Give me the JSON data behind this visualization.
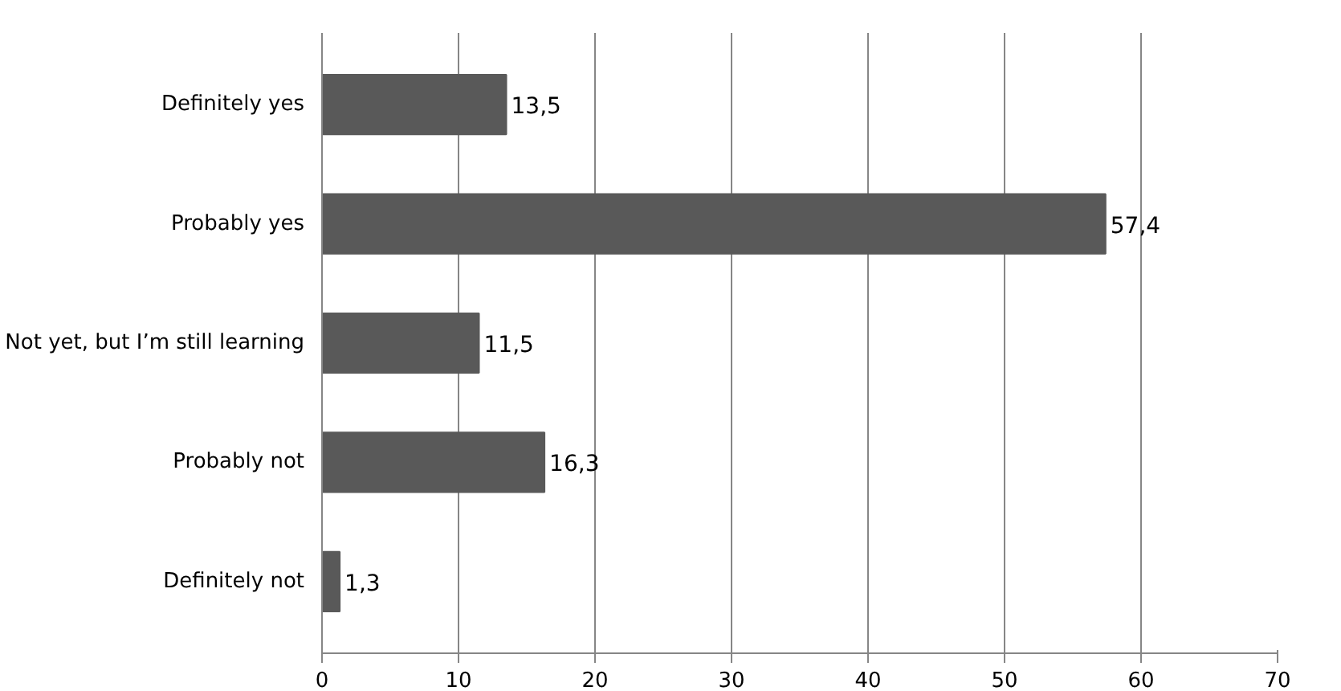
{
  "chart_data": {
    "type": "bar",
    "orientation": "horizontal",
    "categories": [
      "Definitely yes",
      "Probably yes",
      "Not yet, but I’m still learning",
      "Probably not",
      "Definitely not"
    ],
    "values": [
      13.5,
      57.4,
      11.5,
      16.3,
      1.3
    ],
    "value_labels": [
      "13,5",
      "57,4",
      "11,5",
      "16,3",
      "1,3"
    ],
    "color": "#595959",
    "xlim": [
      0,
      70
    ],
    "xticks": [
      0,
      10,
      20,
      30,
      40,
      50,
      60,
      70
    ],
    "grid": "x"
  }
}
